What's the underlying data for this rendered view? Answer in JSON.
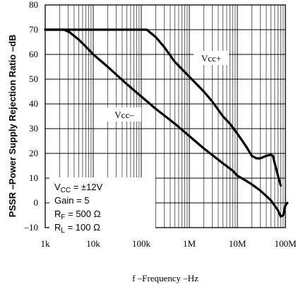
{
  "chart_data": {
    "type": "line",
    "title": "",
    "xlabel": "f –Frequency –Hz",
    "ylabel": "PSSR –Power Supply Rejection Ratio –dB",
    "x_scale": "log",
    "xlim": [
      1000,
      100000000
    ],
    "ylim": [
      -10,
      80
    ],
    "grid": true,
    "x_ticks": [
      {
        "value": 1000,
        "label": "1k"
      },
      {
        "value": 10000,
        "label": "10k"
      },
      {
        "value": 100000,
        "label": "100k"
      },
      {
        "value": 1000000,
        "label": "1M"
      },
      {
        "value": 10000000,
        "label": "10M"
      },
      {
        "value": 100000000,
        "label": "100M"
      }
    ],
    "y_ticks": [
      -10,
      0,
      10,
      20,
      30,
      40,
      50,
      60,
      70,
      80
    ],
    "series": [
      {
        "name": "Vcc+",
        "points": [
          [
            1000,
            70
          ],
          [
            100000,
            70
          ],
          [
            130000,
            70
          ],
          [
            200000,
            67
          ],
          [
            300000,
            63
          ],
          [
            500000,
            57
          ],
          [
            1000000,
            51
          ],
          [
            2000000,
            45
          ],
          [
            3000000,
            41
          ],
          [
            5000000,
            35
          ],
          [
            7000000,
            32
          ],
          [
            10000000,
            28
          ],
          [
            15000000,
            23
          ],
          [
            20000000,
            19
          ],
          [
            25000000,
            18
          ],
          [
            30000000,
            18
          ],
          [
            40000000,
            19
          ],
          [
            50000000,
            19.5
          ],
          [
            55000000,
            19
          ],
          [
            60000000,
            16
          ],
          [
            70000000,
            11
          ],
          [
            80000000,
            7
          ]
        ]
      },
      {
        "name": "Vcc–",
        "points": [
          [
            1000,
            70
          ],
          [
            2500,
            70
          ],
          [
            3200,
            69
          ],
          [
            5000,
            66
          ],
          [
            8000,
            62
          ],
          [
            10000,
            60
          ],
          [
            20000,
            55
          ],
          [
            50000,
            48
          ],
          [
            100000,
            43
          ],
          [
            200000,
            38
          ],
          [
            500000,
            32
          ],
          [
            1000000,
            27
          ],
          [
            2000000,
            22
          ],
          [
            5000000,
            16
          ],
          [
            8000000,
            13
          ],
          [
            10000000,
            11
          ],
          [
            15000000,
            9
          ],
          [
            20000000,
            7.5
          ],
          [
            30000000,
            5
          ],
          [
            50000000,
            1
          ],
          [
            70000000,
            -3
          ],
          [
            80000000,
            -5.5
          ],
          [
            90000000,
            -5
          ],
          [
            100000000,
            -1
          ],
          [
            110000000,
            0
          ]
        ]
      }
    ],
    "series_labels": [
      "Vcc+",
      "Vcc–"
    ],
    "conditions": [
      {
        "main": "V",
        "sub": "CC",
        "rest": " = ±12V"
      },
      {
        "main": "Gain = 5",
        "sub": "",
        "rest": ""
      },
      {
        "main": "R",
        "sub": "F",
        "rest": " = 500 Ω"
      },
      {
        "main": "R",
        "sub": "L",
        "rest": " =  100 Ω"
      }
    ]
  }
}
